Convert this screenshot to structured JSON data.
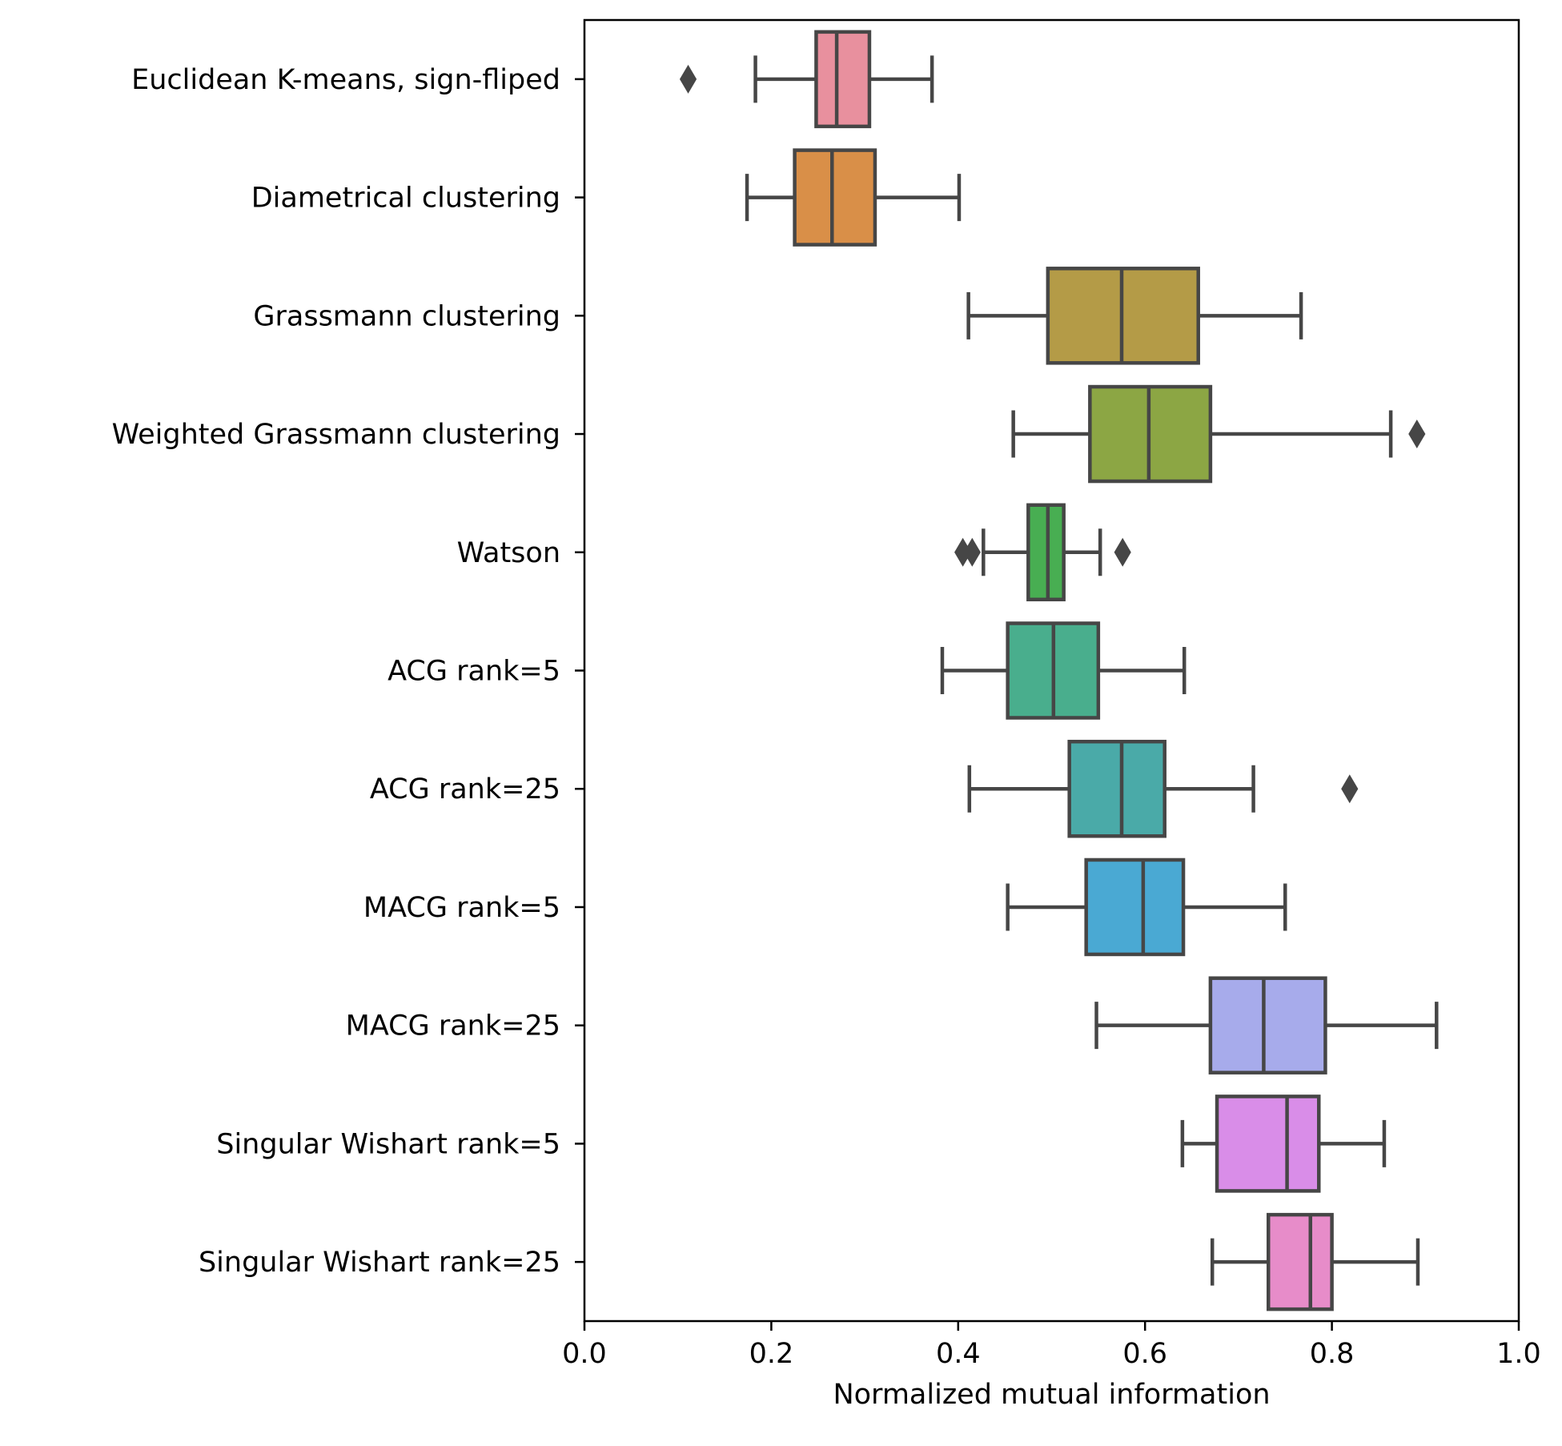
{
  "chart_data": {
    "type": "box",
    "orientation": "horizontal",
    "title": "",
    "xlabel": "Normalized mutual information",
    "ylabel": "",
    "xlim": [
      0.0,
      1.0
    ],
    "xticks": [
      "0.0",
      "0.2",
      "0.4",
      "0.6",
      "0.8",
      "1.0"
    ],
    "grid": false,
    "series": [
      {
        "label": "Euclidean K-means, sign-fliped",
        "color": "#e8909e",
        "whisker_low": 0.183,
        "q1": 0.248,
        "median": 0.27,
        "q3": 0.305,
        "whisker_high": 0.372,
        "outliers": [
          0.111
        ]
      },
      {
        "label": "Diametrical clustering",
        "color": "#d98f48",
        "whisker_low": 0.174,
        "q1": 0.225,
        "median": 0.265,
        "q3": 0.311,
        "whisker_high": 0.401,
        "outliers": []
      },
      {
        "label": "Grassmann clustering",
        "color": "#b49b47",
        "whisker_low": 0.411,
        "q1": 0.496,
        "median": 0.575,
        "q3": 0.657,
        "whisker_high": 0.767,
        "outliers": []
      },
      {
        "label": "Weighted Grassmann clustering",
        "color": "#8ca644",
        "whisker_low": 0.459,
        "q1": 0.541,
        "median": 0.604,
        "q3": 0.67,
        "whisker_high": 0.863,
        "outliers": [
          0.891
        ]
      },
      {
        "label": "Watson",
        "color": "#48ae52",
        "whisker_low": 0.427,
        "q1": 0.475,
        "median": 0.496,
        "q3": 0.513,
        "whisker_high": 0.552,
        "outliers": [
          0.405,
          0.415,
          0.576
        ]
      },
      {
        "label": "ACG rank=5",
        "color": "#49ae8d",
        "whisker_low": 0.383,
        "q1": 0.453,
        "median": 0.502,
        "q3": 0.55,
        "whisker_high": 0.642,
        "outliers": []
      },
      {
        "label": "ACG rank=25",
        "color": "#4aaaa8",
        "whisker_low": 0.412,
        "q1": 0.519,
        "median": 0.575,
        "q3": 0.621,
        "whisker_high": 0.716,
        "outliers": [
          0.819
        ]
      },
      {
        "label": "MACG rank=5",
        "color": "#4aa9d3",
        "whisker_low": 0.453,
        "q1": 0.537,
        "median": 0.598,
        "q3": 0.641,
        "whisker_high": 0.75,
        "outliers": []
      },
      {
        "label": "MACG rank=25",
        "color": "#a7abeb",
        "whisker_low": 0.548,
        "q1": 0.67,
        "median": 0.727,
        "q3": 0.793,
        "whisker_high": 0.912,
        "outliers": []
      },
      {
        "label": "Singular Wishart rank=5",
        "color": "#d98de8",
        "whisker_low": 0.64,
        "q1": 0.677,
        "median": 0.752,
        "q3": 0.786,
        "whisker_high": 0.856,
        "outliers": []
      },
      {
        "label": "Singular Wishart rank=25",
        "color": "#e78cc9",
        "whisker_low": 0.672,
        "q1": 0.732,
        "median": 0.777,
        "q3": 0.8,
        "whisker_high": 0.892,
        "outliers": []
      }
    ]
  },
  "colors": {
    "box_edge": "#464646",
    "axes": "#000000",
    "background": "#ffffff"
  }
}
